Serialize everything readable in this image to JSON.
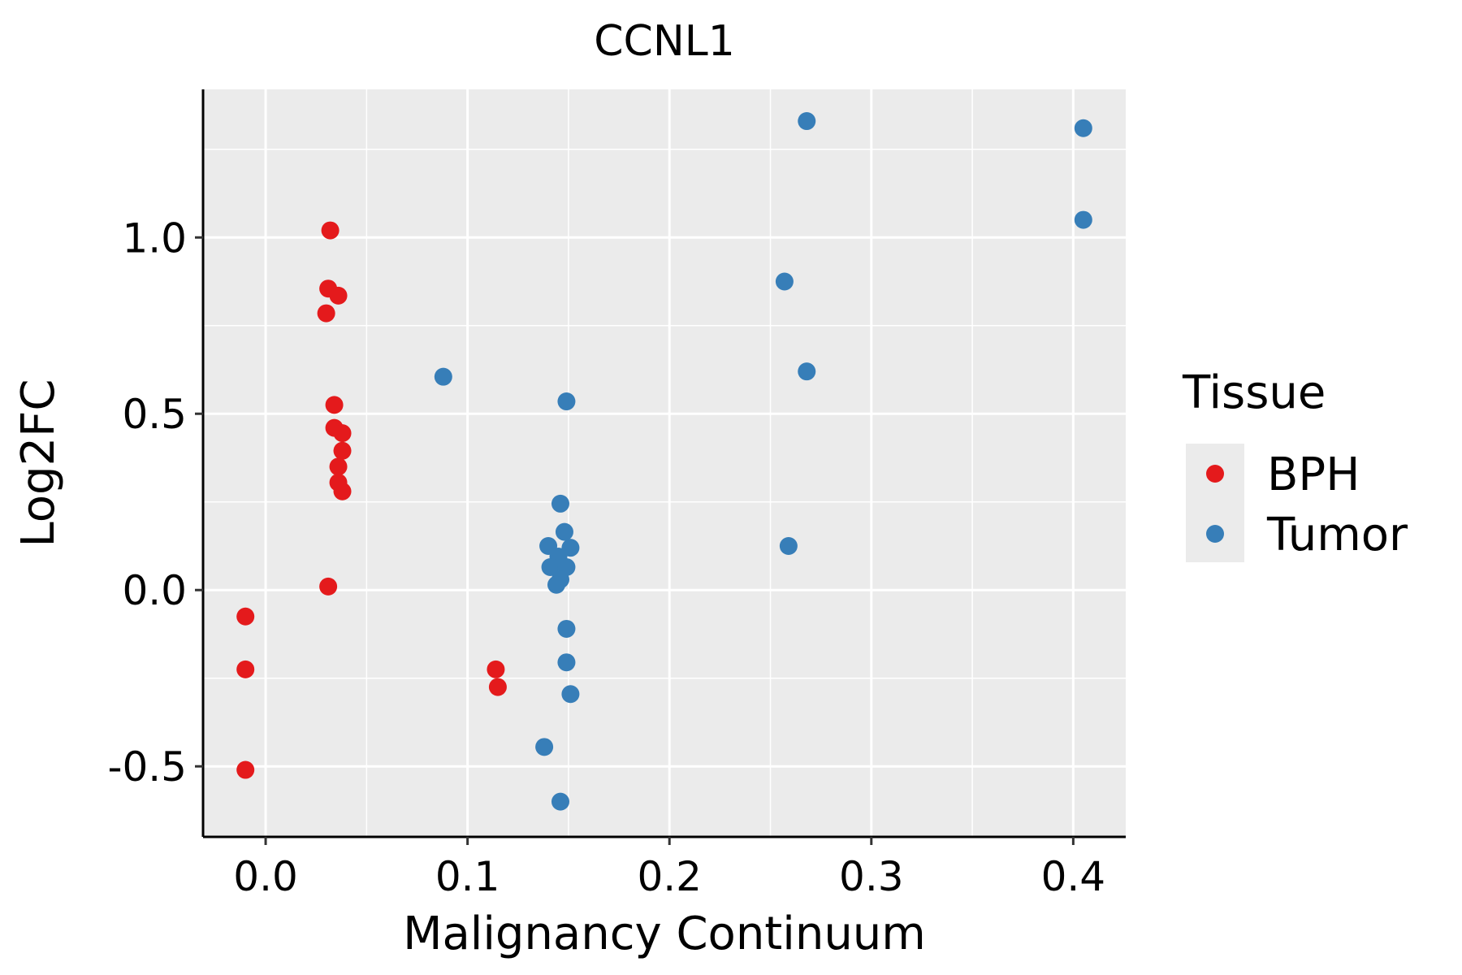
{
  "chart_data": {
    "type": "scatter",
    "title": "CCNL1",
    "xlabel": "Malignancy Continuum",
    "ylabel": "Log2FC",
    "xlim": [
      -0.031,
      0.426
    ],
    "ylim": [
      -0.7,
      1.42
    ],
    "x_ticks": [
      0.0,
      0.1,
      0.2,
      0.3,
      0.4
    ],
    "x_tick_labels": [
      "0.0",
      "0.1",
      "0.2",
      "0.3",
      "0.4"
    ],
    "y_ticks": [
      -0.5,
      0.0,
      0.5,
      1.0
    ],
    "y_tick_labels": [
      "-0.5",
      "0.0",
      "0.5",
      "1.0"
    ],
    "grid": true,
    "legend": {
      "title": "Tissue",
      "position": "right",
      "entries": [
        "BPH",
        "Tumor"
      ]
    },
    "series": [
      {
        "name": "BPH",
        "color": "#e41a1c",
        "points": [
          {
            "x": 0.032,
            "y": 1.02
          },
          {
            "x": 0.031,
            "y": 0.855
          },
          {
            "x": 0.036,
            "y": 0.835
          },
          {
            "x": 0.03,
            "y": 0.785
          },
          {
            "x": 0.034,
            "y": 0.525
          },
          {
            "x": 0.034,
            "y": 0.46
          },
          {
            "x": 0.038,
            "y": 0.445
          },
          {
            "x": 0.038,
            "y": 0.395
          },
          {
            "x": 0.036,
            "y": 0.35
          },
          {
            "x": 0.036,
            "y": 0.305
          },
          {
            "x": 0.038,
            "y": 0.28
          },
          {
            "x": 0.031,
            "y": 0.01
          },
          {
            "x": -0.01,
            "y": -0.075
          },
          {
            "x": -0.01,
            "y": -0.225
          },
          {
            "x": -0.01,
            "y": -0.51
          },
          {
            "x": 0.114,
            "y": -0.225
          },
          {
            "x": 0.115,
            "y": -0.275
          }
        ]
      },
      {
        "name": "Tumor",
        "color": "#377eb8",
        "points": [
          {
            "x": 0.268,
            "y": 1.33
          },
          {
            "x": 0.405,
            "y": 1.31
          },
          {
            "x": 0.405,
            "y": 1.05
          },
          {
            "x": 0.257,
            "y": 0.875
          },
          {
            "x": 0.268,
            "y": 0.62
          },
          {
            "x": 0.088,
            "y": 0.605
          },
          {
            "x": 0.149,
            "y": 0.535
          },
          {
            "x": 0.146,
            "y": 0.245
          },
          {
            "x": 0.148,
            "y": 0.165
          },
          {
            "x": 0.14,
            "y": 0.125
          },
          {
            "x": 0.151,
            "y": 0.12
          },
          {
            "x": 0.145,
            "y": 0.095
          },
          {
            "x": 0.141,
            "y": 0.065
          },
          {
            "x": 0.149,
            "y": 0.065
          },
          {
            "x": 0.146,
            "y": 0.03
          },
          {
            "x": 0.144,
            "y": 0.015
          },
          {
            "x": 0.259,
            "y": 0.125
          },
          {
            "x": 0.149,
            "y": -0.11
          },
          {
            "x": 0.149,
            "y": -0.205
          },
          {
            "x": 0.151,
            "y": -0.295
          },
          {
            "x": 0.138,
            "y": -0.445
          },
          {
            "x": 0.146,
            "y": -0.6
          }
        ]
      }
    ]
  }
}
